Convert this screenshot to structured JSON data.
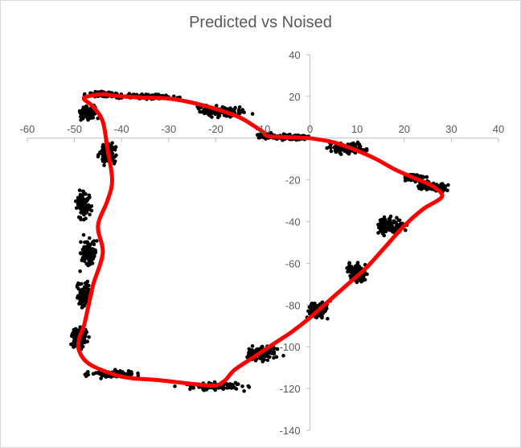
{
  "chart_data": {
    "type": "scatter",
    "title": "Predicted vs Noised",
    "xlabel": "",
    "ylabel": "",
    "xlim": [
      -60,
      40
    ],
    "ylim": [
      -140,
      40
    ],
    "x_ticks": [
      -60,
      -50,
      -40,
      -30,
      -20,
      -10,
      0,
      10,
      20,
      30,
      40
    ],
    "y_ticks": [
      40,
      20,
      -20,
      -40,
      -60,
      -80,
      -100,
      -120,
      -140
    ],
    "x_tick_labels": [
      "-60",
      "-50",
      "-40",
      "-30",
      "-20",
      "-10",
      "0",
      "10",
      "20",
      "30",
      "40"
    ],
    "y_tick_labels": [
      "40",
      "20",
      "-20",
      "-40",
      "-60",
      "-80",
      "-100",
      "-120",
      "-140"
    ],
    "grid": false,
    "legend": "none",
    "series": [
      {
        "role": "noised",
        "marker": "dot",
        "color": "#000000",
        "clusters": [
          {
            "center": [
              -4,
              0.3
            ],
            "spread": [
              3.5,
              1.2
            ]
          },
          {
            "center": [
              -9,
              1
            ],
            "spread": [
              2,
              1
            ]
          },
          {
            "center": [
              -19,
              13
            ],
            "spread": [
              5,
              2.5
            ]
          },
          {
            "center": [
              -35,
              20
            ],
            "spread": [
              6,
              1.2
            ]
          },
          {
            "center": [
              -44,
              21
            ],
            "spread": [
              3,
              1
            ]
          },
          {
            "center": [
              -47,
              12
            ],
            "spread": [
              2,
              3
            ]
          },
          {
            "center": [
              -43,
              -7
            ],
            "spread": [
              1.5,
              5
            ]
          },
          {
            "center": [
              -48,
              -32
            ],
            "spread": [
              1.5,
              5
            ]
          },
          {
            "center": [
              -47,
              -55
            ],
            "spread": [
              1.5,
              6
            ]
          },
          {
            "center": [
              -48,
              -75
            ],
            "spread": [
              1.5,
              5
            ]
          },
          {
            "center": [
              -49,
              -96
            ],
            "spread": [
              1.5,
              5
            ]
          },
          {
            "center": [
              -42,
              -113
            ],
            "spread": [
              5,
              1.5
            ]
          },
          {
            "center": [
              -20,
              -119
            ],
            "spread": [
              6,
              1.5
            ]
          },
          {
            "center": [
              -10,
              -103
            ],
            "spread": [
              3,
              3
            ]
          },
          {
            "center": [
              2,
              -82
            ],
            "spread": [
              2,
              4
            ]
          },
          {
            "center": [
              10,
              -65
            ],
            "spread": [
              2,
              4
            ]
          },
          {
            "center": [
              17,
              -42
            ],
            "spread": [
              3,
              4
            ]
          },
          {
            "center": [
              26,
              -23
            ],
            "spread": [
              3,
              2
            ]
          },
          {
            "center": [
              22,
              -19
            ],
            "spread": [
              2,
              1.5
            ]
          },
          {
            "center": [
              8,
              -5
            ],
            "spread": [
              4,
              2.5
            ]
          }
        ]
      },
      {
        "role": "predicted",
        "marker": "line",
        "color": "#ff0000",
        "x": [
          0,
          5,
          10,
          14,
          18,
          22,
          26,
          28,
          24,
          20,
          16,
          12,
          8,
          4,
          0,
          -4,
          -8,
          -12,
          -16,
          -18,
          -20,
          -24,
          -32,
          -38,
          -42,
          -47,
          -49,
          -49,
          -48,
          -47,
          -46,
          -44,
          -45,
          -43,
          -42,
          -43,
          -44,
          -46,
          -48,
          -46,
          -44,
          -42,
          -40,
          -36,
          -30,
          -25,
          -20,
          -15,
          -12,
          -10,
          -9,
          -5,
          -2,
          0
        ],
        "y": [
          0,
          -2,
          -6,
          -10,
          -15,
          -19,
          -23,
          -28,
          -34,
          -42,
          -52,
          -62,
          -70,
          -78,
          -86,
          -93,
          -99,
          -105,
          -111,
          -116,
          -118.5,
          -118,
          -116,
          -115,
          -113,
          -108,
          -102,
          -96,
          -90,
          -80,
          -70,
          -55,
          -42,
          -30,
          -20,
          -5,
          8,
          15,
          19,
          20.5,
          21,
          20.5,
          20,
          19.5,
          19,
          17,
          14,
          10,
          6,
          3,
          1,
          0.5,
          0.2,
          0
        ]
      }
    ]
  }
}
